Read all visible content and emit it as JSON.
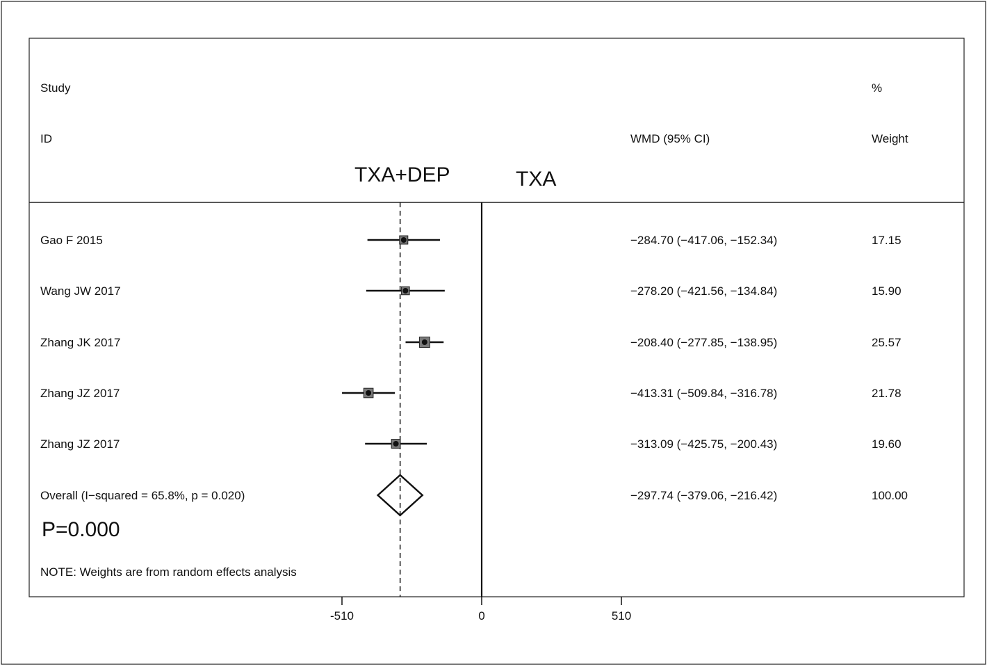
{
  "chart_data": {
    "type": "forest",
    "header": {
      "study": "Study",
      "id": "ID",
      "pct": "%",
      "wmd": "WMD (95% CI)",
      "weight": "Weight"
    },
    "group_labels": {
      "left": "TXA+DEP",
      "right": "TXA"
    },
    "studies": [
      {
        "label": "Gao F 2015",
        "est": -284.7,
        "lo": -417.06,
        "hi": -152.34,
        "ci_text": "−284.70 (−417.06, −152.34)",
        "weight": 17.15,
        "weight_text": "17.15"
      },
      {
        "label": "Wang JW 2017",
        "est": -278.2,
        "lo": -421.56,
        "hi": -134.84,
        "ci_text": "−278.20 (−421.56, −134.84)",
        "weight": 15.9,
        "weight_text": "15.90"
      },
      {
        "label": "Zhang JK 2017",
        "est": -208.4,
        "lo": -277.85,
        "hi": -138.95,
        "ci_text": "−208.40 (−277.85, −138.95)",
        "weight": 25.57,
        "weight_text": "25.57"
      },
      {
        "label": "Zhang JZ 2017",
        "est": -413.31,
        "lo": -509.84,
        "hi": -316.78,
        "ci_text": "−413.31 (−509.84, −316.78)",
        "weight": 21.78,
        "weight_text": "21.78"
      },
      {
        "label": "Zhang JZ 2017",
        "est": -313.09,
        "lo": -425.75,
        "hi": -200.43,
        "ci_text": "−313.09 (−425.75, −200.43)",
        "weight": 19.6,
        "weight_text": "19.60"
      }
    ],
    "overall": {
      "label": "Overall  (I−squared = 65.8%, p = 0.020)",
      "est": -297.74,
      "lo": -379.06,
      "hi": -216.42,
      "ci_text": "−297.74 (−379.06, −216.42)",
      "weight_text": "100.00"
    },
    "p_value": "P=0.000",
    "note": "NOTE: Weights are from random effects analysis",
    "x_ticks": [
      {
        "value": -510,
        "label": "-510"
      },
      {
        "value": 0,
        "label": "0"
      },
      {
        "value": 510,
        "label": "510"
      }
    ],
    "x_range": [
      -510,
      510
    ],
    "null_line": 0
  }
}
